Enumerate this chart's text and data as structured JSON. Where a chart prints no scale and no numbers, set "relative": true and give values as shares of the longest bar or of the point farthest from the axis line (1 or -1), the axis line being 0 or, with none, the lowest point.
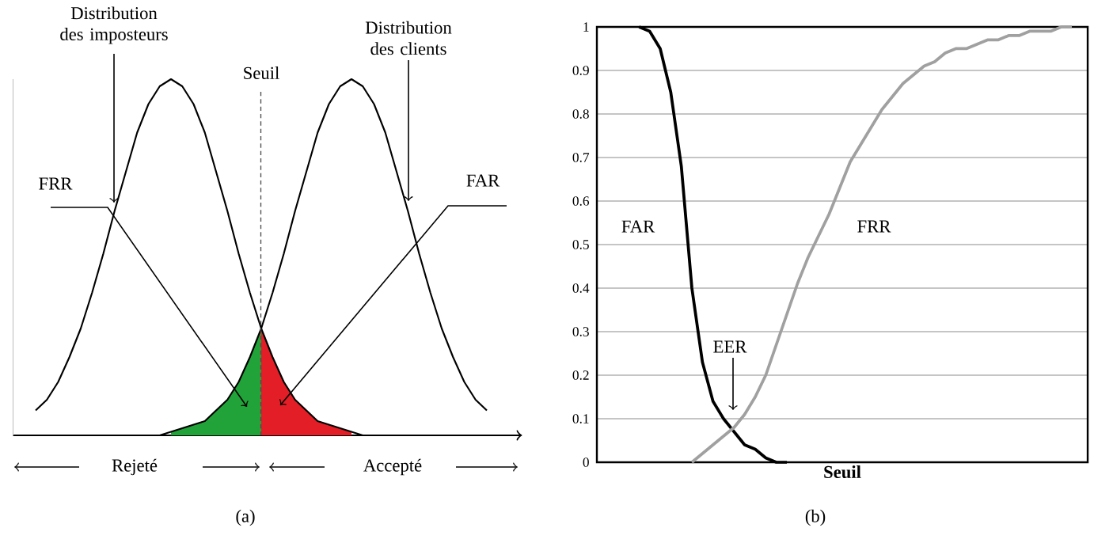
{
  "chart_data": [
    {
      "type": "line",
      "relative": true,
      "categories": [
        null,
        null,
        null,
        null,
        null,
        null,
        null,
        null,
        null,
        null,
        null,
        null,
        null,
        null,
        null,
        null,
        null,
        null,
        null,
        null,
        null,
        null,
        null,
        null,
        null,
        null,
        null,
        null,
        null,
        null,
        null,
        null,
        null,
        null,
        null,
        null,
        null,
        null,
        null,
        null,
        null
      ],
      "series": [
        {
          "type": "area",
          "color": "#22a33a",
          "values": [
            null,
            null,
            null,
            null,
            null,
            null,
            null,
            null,
            null,
            null,
            null,
            null,
            0.01,
            0.02,
            0.03,
            0.04,
            0.07,
            0.1,
            0.15,
            0.22,
            0.3,
            null,
            null,
            null,
            null,
            null,
            null,
            null,
            null,
            null,
            null,
            null,
            null,
            null,
            null,
            null,
            null,
            null,
            null,
            null,
            null
          ]
        },
        {
          "type": "area",
          "color": "#e41e26",
          "values": [
            null,
            null,
            null,
            null,
            null,
            null,
            null,
            null,
            null,
            null,
            null,
            null,
            null,
            null,
            null,
            null,
            null,
            null,
            null,
            null,
            0.3,
            0.22,
            0.15,
            0.1,
            0.07,
            0.04,
            0.03,
            0.02,
            0.01,
            null,
            null,
            null,
            null,
            null,
            null,
            null,
            null,
            null,
            null,
            null,
            null
          ]
        },
        {
          "color": "#000000",
          "values": [
            0.07,
            0.1,
            0.15,
            0.22,
            0.3,
            0.4,
            0.51,
            0.63,
            0.74,
            0.85,
            0.93,
            0.98,
            1,
            0.98,
            0.93,
            0.85,
            0.74,
            0.63,
            0.51,
            0.4,
            0.3,
            0.22,
            0.15,
            0.1,
            0.07,
            0.04,
            0.03,
            0.02,
            0.01,
            0,
            null,
            null,
            null,
            null,
            null,
            null,
            null,
            null,
            null,
            null,
            null
          ]
        },
        {
          "color": "#000000",
          "values": [
            null,
            null,
            null,
            null,
            null,
            null,
            null,
            null,
            null,
            null,
            null,
            0,
            0.01,
            0.02,
            0.03,
            0.04,
            0.07,
            0.1,
            0.15,
            0.22,
            0.3,
            0.4,
            0.51,
            0.63,
            0.74,
            0.85,
            0.93,
            0.98,
            1,
            0.98,
            0.93,
            0.85,
            0.74,
            0.63,
            0.51,
            0.4,
            0.3,
            0.22,
            0.15,
            0.1,
            0.07
          ]
        }
      ],
      "annotations": [
        "Distribution des imposteurs",
        "Distribution des clients",
        "Seuil",
        "FRR",
        "FAR",
        "Rejeté",
        "Accepté",
        "(a)"
      ]
    },
    {
      "type": "line",
      "categories": [
        null,
        null,
        null,
        null,
        null,
        null,
        null,
        null,
        null,
        null,
        null,
        null,
        null,
        null,
        null,
        null,
        null,
        null,
        null,
        null,
        null,
        null,
        null,
        null,
        null,
        null,
        null,
        null,
        null,
        null,
        null,
        null,
        null,
        null,
        null,
        null,
        null,
        null,
        null,
        null,
        null,
        null,
        null,
        null,
        null,
        null,
        null
      ],
      "series": [
        {
          "name": "FAR",
          "color": "#000000",
          "values": [
            null,
            null,
            null,
            null,
            1,
            0.99,
            0.95,
            0.85,
            0.68,
            0.4,
            0.23,
            0.14,
            0.1,
            0.07,
            0.04,
            0.03,
            0.01,
            0,
            0,
            null,
            null,
            null,
            null,
            null,
            null,
            null,
            null,
            null,
            null,
            null,
            null,
            null,
            null,
            null,
            null,
            null,
            null,
            null,
            null,
            null,
            null,
            null,
            null,
            null,
            null,
            null,
            null
          ]
        },
        {
          "name": "FRR",
          "color": "#a0a0a0",
          "values": [
            null,
            null,
            null,
            null,
            null,
            null,
            null,
            null,
            null,
            0,
            0.02,
            0.04,
            0.06,
            0.08,
            0.11,
            0.15,
            0.2,
            0.27,
            0.34,
            0.41,
            0.47,
            0.52,
            0.57,
            0.63,
            0.69,
            0.73,
            0.77,
            0.81,
            0.84,
            0.87,
            0.89,
            0.91,
            0.92,
            0.94,
            0.95,
            0.95,
            0.96,
            0.97,
            0.97,
            0.98,
            0.98,
            0.99,
            0.99,
            0.99,
            1,
            1,
            null
          ]
        }
      ],
      "ylim": [
        0,
        1
      ],
      "yticks": [
        0,
        0.1,
        0.2,
        0.3,
        0.4,
        0.5,
        0.6,
        0.7,
        0.8,
        0.9,
        1
      ],
      "grid": "y",
      "xlabel": "Seuil",
      "annotations": [
        "EER",
        "(b)"
      ]
    }
  ]
}
